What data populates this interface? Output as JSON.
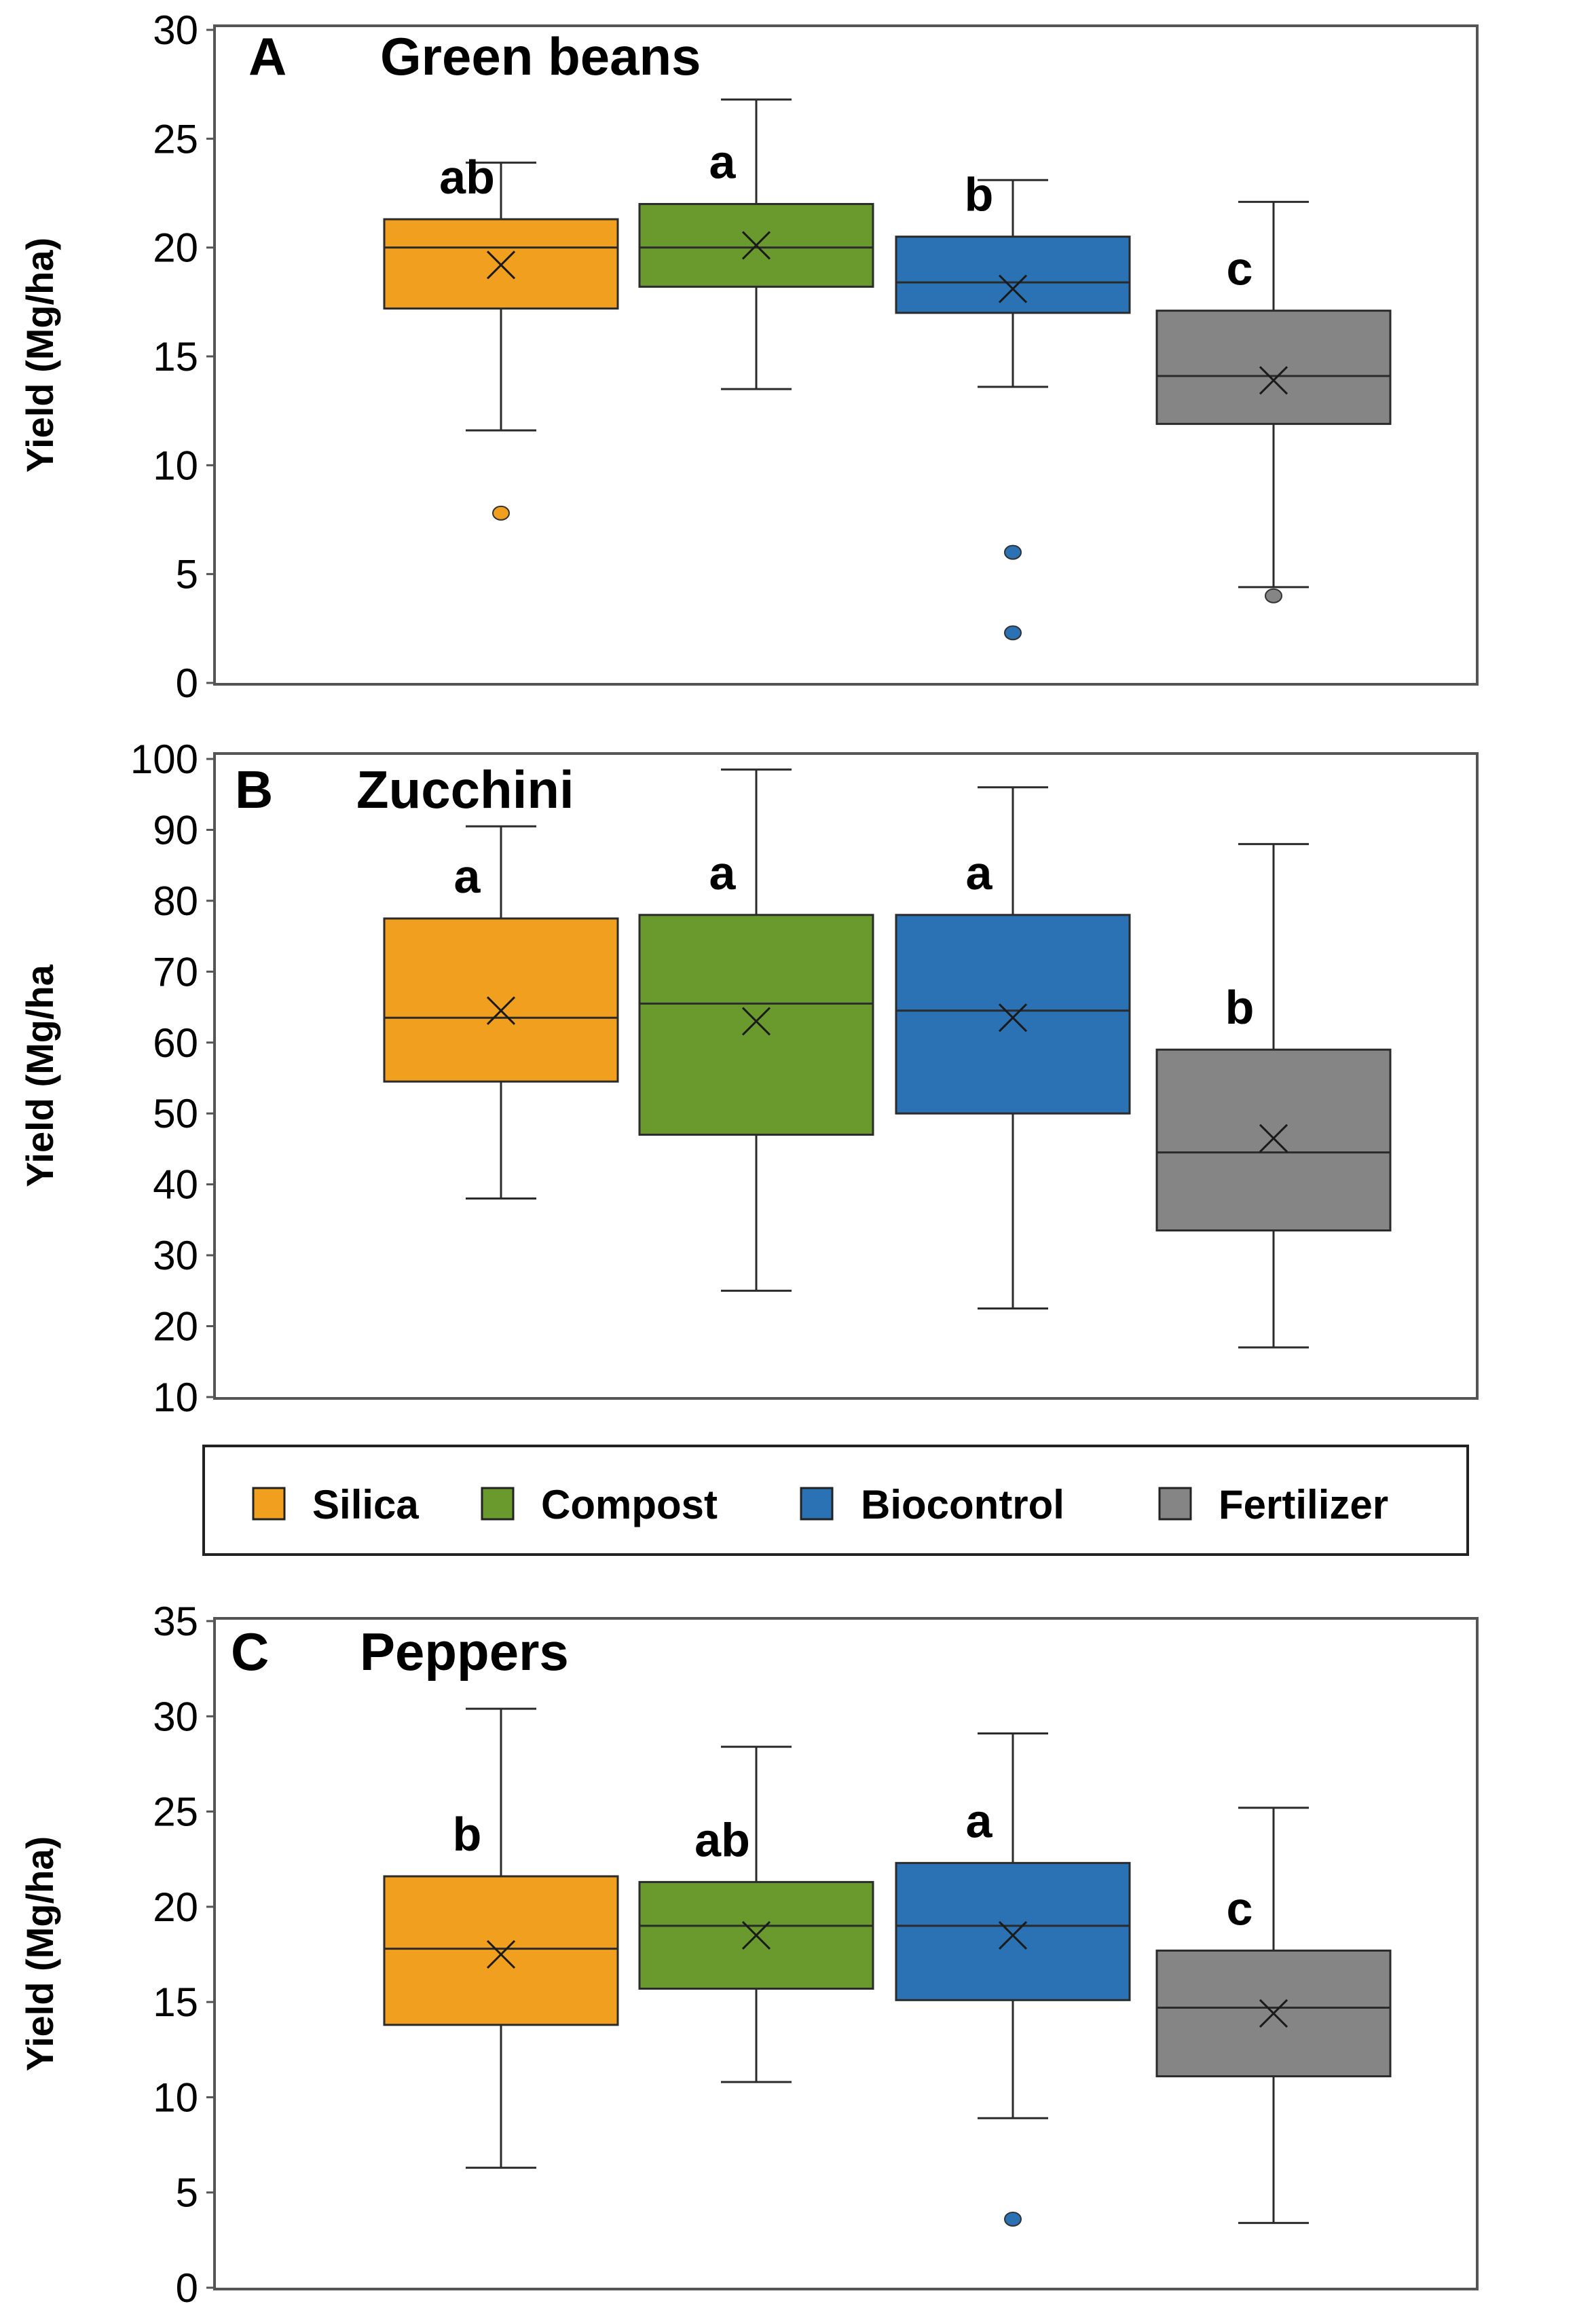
{
  "legend": {
    "items": [
      {
        "label": "Silica",
        "color": "#f0a01e"
      },
      {
        "label": "Compost",
        "color": "#6a9a2e"
      },
      {
        "label": "Biocontrol",
        "color": "#2a72b4"
      },
      {
        "label": "Fertilizer",
        "color": "#858585"
      }
    ]
  },
  "chart_data": [
    {
      "type": "box",
      "panel_letter": "A",
      "title": "Green beans",
      "ylabel": "Yield (Mg/ha)",
      "ylim": [
        0,
        30
      ],
      "yticks": [
        0,
        5,
        10,
        15,
        20,
        25,
        30
      ],
      "series": [
        {
          "name": "Silica",
          "min": 11.6,
          "q1": 17.2,
          "median": 20.0,
          "q3": 21.3,
          "max": 23.9,
          "mean": 19.2,
          "outliers": [
            7.8
          ],
          "sig": "ab"
        },
        {
          "name": "Compost",
          "min": 13.5,
          "q1": 18.2,
          "median": 20.0,
          "q3": 22.0,
          "max": 26.8,
          "mean": 20.1,
          "outliers": [],
          "sig": "a"
        },
        {
          "name": "Biocontrol",
          "min": 13.6,
          "q1": 17.0,
          "median": 18.4,
          "q3": 20.5,
          "max": 23.1,
          "mean": 18.1,
          "outliers": [
            6.0,
            2.3
          ],
          "sig": "b"
        },
        {
          "name": "Fertilizer",
          "min": 4.4,
          "q1": 11.9,
          "median": 14.1,
          "q3": 17.1,
          "max": 22.1,
          "mean": 13.9,
          "outliers": [
            4.0
          ],
          "sig": "c"
        }
      ]
    },
    {
      "type": "box",
      "panel_letter": "B",
      "title": "Zucchini",
      "ylabel": "Yield (Mg/ha",
      "ylim": [
        10,
        100
      ],
      "yticks": [
        10,
        20,
        30,
        40,
        50,
        60,
        70,
        80,
        90,
        100
      ],
      "series": [
        {
          "name": "Silica",
          "min": 38.0,
          "q1": 54.5,
          "median": 63.5,
          "q3": 77.5,
          "max": 90.5,
          "mean": 64.5,
          "outliers": [],
          "sig": "a"
        },
        {
          "name": "Compost",
          "min": 25.0,
          "q1": 47.0,
          "median": 65.5,
          "q3": 78.0,
          "max": 98.5,
          "mean": 63.0,
          "outliers": [],
          "sig": "a"
        },
        {
          "name": "Biocontrol",
          "min": 22.5,
          "q1": 50.0,
          "median": 64.5,
          "q3": 78.0,
          "max": 96.0,
          "mean": 63.5,
          "outliers": [],
          "sig": "a"
        },
        {
          "name": "Fertilizer",
          "min": 17.0,
          "q1": 33.5,
          "median": 44.5,
          "q3": 59.0,
          "max": 88.0,
          "mean": 46.5,
          "outliers": [],
          "sig": "b"
        }
      ]
    },
    {
      "type": "box",
      "panel_letter": "C",
      "title": "Peppers",
      "ylabel": "Yield (Mg/ha)",
      "ylim": [
        0,
        35
      ],
      "yticks": [
        0,
        5,
        10,
        15,
        20,
        25,
        30,
        35
      ],
      "series": [
        {
          "name": "Silica",
          "min": 6.3,
          "q1": 13.8,
          "median": 17.8,
          "q3": 21.6,
          "max": 30.4,
          "mean": 17.5,
          "outliers": [],
          "sig": "b"
        },
        {
          "name": "Compost",
          "min": 10.8,
          "q1": 15.7,
          "median": 19.0,
          "q3": 21.3,
          "max": 28.4,
          "mean": 18.5,
          "outliers": [],
          "sig": "ab"
        },
        {
          "name": "Biocontrol",
          "min": 8.9,
          "q1": 15.1,
          "median": 19.0,
          "q3": 22.3,
          "max": 29.1,
          "mean": 18.5,
          "outliers": [
            3.6
          ],
          "sig": "a"
        },
        {
          "name": "Fertilizer",
          "min": 3.4,
          "q1": 11.1,
          "median": 14.7,
          "q3": 17.7,
          "max": 25.2,
          "mean": 14.4,
          "outliers": [],
          "sig": "c"
        }
      ]
    }
  ]
}
